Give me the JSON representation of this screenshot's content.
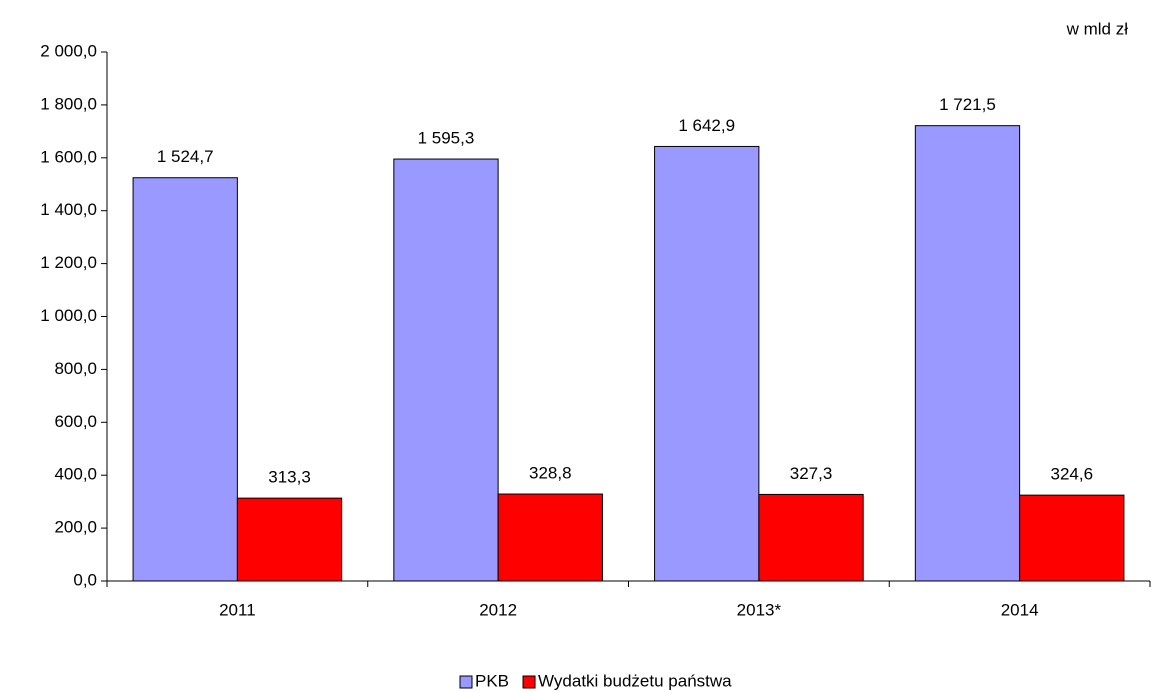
{
  "chart_data": {
    "type": "bar",
    "unit_label": "w  mld zł",
    "categories": [
      "2011",
      "2012",
      "2013*",
      "2014"
    ],
    "series": [
      {
        "name": "PKB",
        "color": "#9999ff",
        "values": [
          1524.7,
          1595.3,
          1642.9,
          1721.5
        ],
        "value_labels": [
          "1 524,7",
          "1 595,3",
          "1 642,9",
          "1 721,5"
        ]
      },
      {
        "name": "Wydatki budżetu państwa",
        "color": "#ff0000",
        "values": [
          313.3,
          328.8,
          327.3,
          324.6
        ],
        "value_labels": [
          "313,3",
          "328,8",
          "327,3",
          "324,6"
        ]
      }
    ],
    "ylim": [
      0,
      2000
    ],
    "yticks": [
      {
        "value": 0,
        "label": "0,0"
      },
      {
        "value": 200,
        "label": "200,0"
      },
      {
        "value": 400,
        "label": "400,0"
      },
      {
        "value": 600,
        "label": "600,0"
      },
      {
        "value": 800,
        "label": "800,0"
      },
      {
        "value": 1000,
        "label": "1 000,0"
      },
      {
        "value": 1200,
        "label": "1 200,0"
      },
      {
        "value": 1400,
        "label": "1 400,0"
      },
      {
        "value": 1600,
        "label": "1 600,0"
      },
      {
        "value": 1800,
        "label": "1 800,0"
      },
      {
        "value": 2000,
        "label": "2 000,0"
      }
    ],
    "legend": "bottom"
  }
}
